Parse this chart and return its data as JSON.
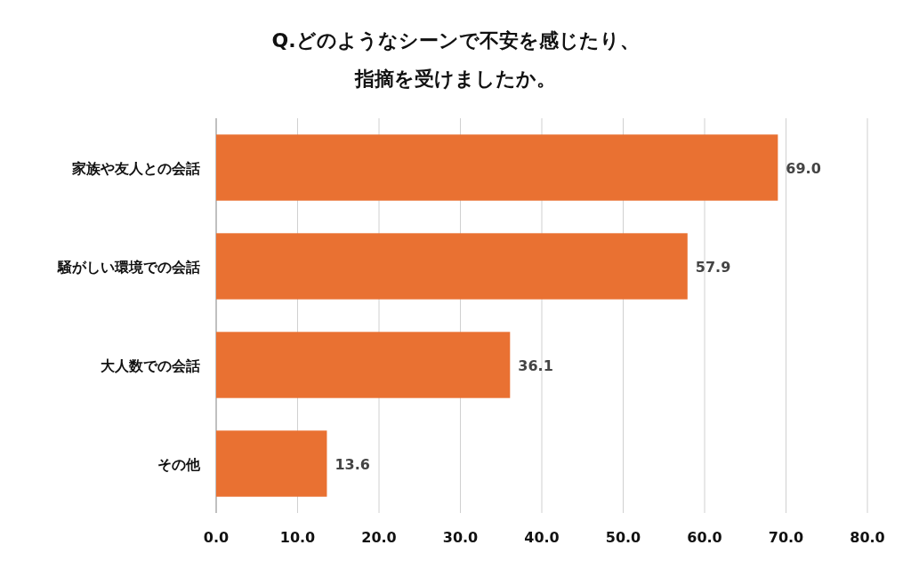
{
  "chart_data": {
    "type": "bar",
    "orientation": "horizontal",
    "title": "Q.どのようなシーンで不安を感じたり、指摘を受けましたか。",
    "categories": [
      "家族や友人との会話",
      "騒がしい環境での会話",
      "大人数での会話",
      "その他"
    ],
    "values": [
      69.0,
      57.9,
      36.1,
      13.6
    ],
    "value_labels": [
      "69.0",
      "57.9",
      "36.1",
      "13.6"
    ],
    "color": "#e97132",
    "xlim": [
      0,
      80
    ],
    "xticks": [
      {
        "value": 0,
        "label": "0.0"
      },
      {
        "value": 10,
        "label": "10.0"
      },
      {
        "value": 20,
        "label": "20.0"
      },
      {
        "value": 30,
        "label": "30.0"
      },
      {
        "value": 40,
        "label": "40.0"
      },
      {
        "value": 50,
        "label": "50.0"
      },
      {
        "value": 60,
        "label": "60.0"
      },
      {
        "value": 70,
        "label": "70.0"
      },
      {
        "value": 80,
        "label": "80.0"
      }
    ],
    "grid": "x"
  }
}
